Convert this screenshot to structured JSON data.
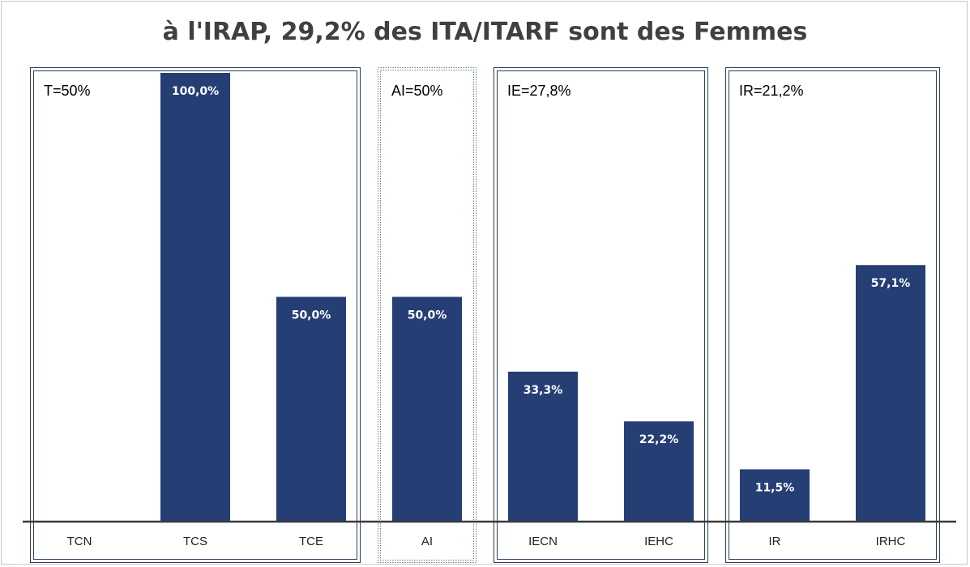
{
  "chart_data": {
    "type": "bar",
    "title": "à l'IRAP, 29,2% des ITA/ITARF sont des Femmes",
    "ylim": [
      0,
      100
    ],
    "categories": [
      "TCN",
      "TCS",
      "TCE",
      "AI",
      "IECN",
      "IEHC",
      "IR",
      "IRHC"
    ],
    "values": [
      0,
      100.0,
      50.0,
      50.0,
      33.3,
      22.2,
      11.5,
      57.1
    ],
    "value_labels": [
      "",
      "100,0%",
      "50,0%",
      "50,0%",
      "33,3%",
      "22,2%",
      "11,5%",
      "57,1%"
    ],
    "groups": [
      {
        "label": "T=50%",
        "categories": [
          "TCN",
          "TCS",
          "TCE"
        ],
        "style": "double"
      },
      {
        "label": "AI=50%",
        "categories": [
          "AI"
        ],
        "style": "dotted"
      },
      {
        "label": "IE=27,8%",
        "categories": [
          "IECN",
          "IEHC"
        ],
        "style": "double"
      },
      {
        "label": "IR=21,2%",
        "categories": [
          "IR",
          "IRHC"
        ],
        "style": "double"
      }
    ],
    "bar_color": "#253f74",
    "grid": false,
    "legend": "none"
  }
}
